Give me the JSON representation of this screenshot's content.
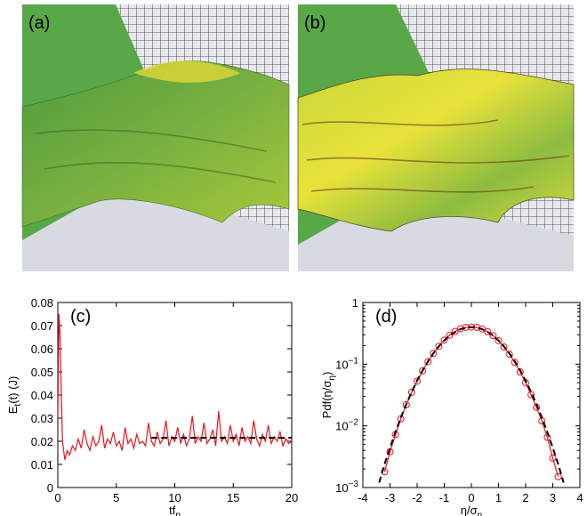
{
  "images": [
    {
      "label": "(a)"
    },
    {
      "label": "(b)"
    }
  ],
  "chart_data": [
    {
      "type": "line",
      "label": "(c)",
      "xlabel": [
        "tf",
        "p"
      ],
      "ylabel": [
        "E",
        "t",
        "(t) (J)"
      ],
      "xlim": [
        0,
        20
      ],
      "ylim": [
        0,
        0.08
      ],
      "xticks": [
        0,
        5,
        10,
        15,
        20
      ],
      "yticks": [
        0,
        0.01,
        0.02,
        0.03,
        0.04,
        0.05,
        0.06,
        0.07,
        0.08
      ],
      "series": [
        {
          "color": "#e8141c",
          "dash": false,
          "x": [
            0,
            0.1,
            0.2,
            0.3,
            0.4,
            0.6,
            0.8,
            1.0,
            1.25,
            1.5,
            1.75,
            2,
            2.25,
            2.5,
            2.75,
            3,
            3.25,
            3.5,
            3.75,
            4,
            4.25,
            4.5,
            4.75,
            5,
            5.25,
            5.5,
            5.75,
            6,
            6.25,
            6.5,
            6.75,
            7,
            7.25,
            7.5,
            7.75,
            8,
            8.25,
            8.5,
            8.75,
            9,
            9.25,
            9.5,
            9.75,
            10,
            10.25,
            10.5,
            10.75,
            11,
            11.25,
            11.5,
            11.75,
            12,
            12.25,
            12.5,
            12.75,
            13,
            13.25,
            13.5,
            13.75,
            14,
            14.25,
            14.5,
            14.75,
            15,
            15.25,
            15.5,
            15.75,
            16,
            16.25,
            16.5,
            16.75,
            17,
            17.25,
            17.5,
            17.75,
            18,
            18.25,
            18.5,
            18.75,
            19,
            19.25,
            19.5,
            19.75,
            20
          ],
          "values": [
            0.03,
            0.075,
            0.065,
            0.04,
            0.02,
            0.012,
            0.016,
            0.014,
            0.018,
            0.016,
            0.021,
            0.017,
            0.025,
            0.019,
            0.016,
            0.022,
            0.018,
            0.02,
            0.027,
            0.017,
            0.021,
            0.019,
            0.024,
            0.018,
            0.02,
            0.016,
            0.026,
            0.019,
            0.021,
            0.017,
            0.023,
            0.019,
            0.02,
            0.018,
            0.028,
            0.02,
            0.018,
            0.024,
            0.019,
            0.021,
            0.029,
            0.018,
            0.022,
            0.02,
            0.026,
            0.019,
            0.023,
            0.018,
            0.021,
            0.031,
            0.019,
            0.022,
            0.02,
            0.028,
            0.019,
            0.021,
            0.025,
            0.018,
            0.033,
            0.02,
            0.022,
            0.019,
            0.027,
            0.02,
            0.023,
            0.018,
            0.026,
            0.02,
            0.022,
            0.019,
            0.029,
            0.021,
            0.018,
            0.023,
            0.02,
            0.027,
            0.019,
            0.022,
            0.02,
            0.024,
            0.018,
            0.021,
            0.019,
            0.02
          ]
        },
        {
          "color": "#000000",
          "dash": true,
          "x": [
            8,
            20
          ],
          "values": [
            0.0215,
            0.0215
          ]
        }
      ]
    },
    {
      "type": "line",
      "label": "(d)",
      "xlabel": [
        "η/σ",
        "η"
      ],
      "ylabel": [
        "Pdf(η/σ",
        "η",
        ")"
      ],
      "xlim": [
        -4,
        4
      ],
      "ylim": [
        0.001,
        1
      ],
      "yscale": "log",
      "xticks": [
        -4,
        -3,
        -2,
        -1,
        0,
        1,
        2,
        3,
        4
      ],
      "yticks": [
        {
          "value": 0.001,
          "label": "10−3"
        },
        {
          "value": 0.01,
          "label": "10−2"
        },
        {
          "value": 0.1,
          "label": "10−1"
        },
        1
      ],
      "series": [
        {
          "color": "#e8141c",
          "dash": false,
          "marker": "o",
          "x": [
            -3.2,
            -3.0,
            -2.8,
            -2.6,
            -2.4,
            -2.2,
            -2.0,
            -1.8,
            -1.6,
            -1.4,
            -1.2,
            -1.0,
            -0.8,
            -0.6,
            -0.4,
            -0.2,
            0,
            0.2,
            0.4,
            0.6,
            0.8,
            1.0,
            1.2,
            1.4,
            1.6,
            1.8,
            2.0,
            2.2,
            2.4,
            2.6,
            2.8,
            3.0,
            3.2
          ],
          "values": [
            0.0018,
            0.0038,
            0.0072,
            0.013,
            0.022,
            0.035,
            0.053,
            0.078,
            0.11,
            0.15,
            0.195,
            0.245,
            0.295,
            0.34,
            0.375,
            0.395,
            0.4,
            0.395,
            0.372,
            0.335,
            0.29,
            0.24,
            0.19,
            0.145,
            0.107,
            0.075,
            0.05,
            0.032,
            0.02,
            0.012,
            0.0065,
            0.003,
            0.0015
          ]
        },
        {
          "color": "#000000",
          "dash": true,
          "x": [
            -3.4,
            -3.2,
            -3.0,
            -2.8,
            -2.6,
            -2.4,
            -2.2,
            -2.0,
            -1.8,
            -1.6,
            -1.4,
            -1.2,
            -1.0,
            -0.8,
            -0.6,
            -0.4,
            -0.2,
            0,
            0.2,
            0.4,
            0.6,
            0.8,
            1.0,
            1.2,
            1.4,
            1.6,
            1.8,
            2.0,
            2.2,
            2.4,
            2.6,
            2.8,
            3.0,
            3.2,
            3.4
          ],
          "values": [
            0.0012,
            0.0024,
            0.0044,
            0.0079,
            0.0136,
            0.0224,
            0.0355,
            0.054,
            0.079,
            0.111,
            0.15,
            0.194,
            0.242,
            0.29,
            0.333,
            0.368,
            0.391,
            0.399,
            0.391,
            0.368,
            0.333,
            0.29,
            0.242,
            0.194,
            0.15,
            0.111,
            0.079,
            0.054,
            0.0355,
            0.0224,
            0.0136,
            0.0079,
            0.0044,
            0.0024,
            0.0012
          ]
        }
      ]
    }
  ]
}
